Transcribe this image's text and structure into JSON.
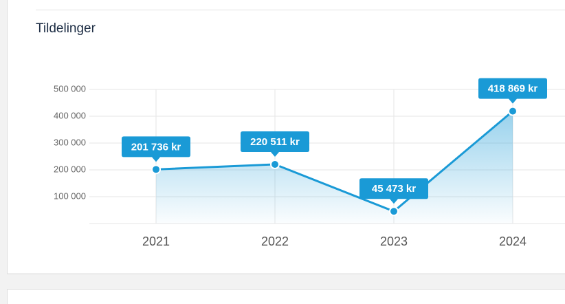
{
  "chart_data": {
    "type": "area-line",
    "title": "Tildelinger",
    "categories": [
      "2021",
      "2022",
      "2023",
      "2024"
    ],
    "values": [
      201736,
      220511,
      45473,
      418869
    ],
    "value_labels": [
      "201 736 kr",
      "220 511 kr",
      "45 473 kr",
      "418 869 kr"
    ],
    "color": "#1a9ad6",
    "ylim": [
      0,
      500000
    ],
    "yticks": [
      {
        "value": 100000,
        "label": "100 000"
      },
      {
        "value": 200000,
        "label": "200 000"
      },
      {
        "value": 300000,
        "label": "300 000"
      },
      {
        "value": 400000,
        "label": "400 000"
      },
      {
        "value": 500000,
        "label": "500 000"
      }
    ],
    "grid": true
  }
}
